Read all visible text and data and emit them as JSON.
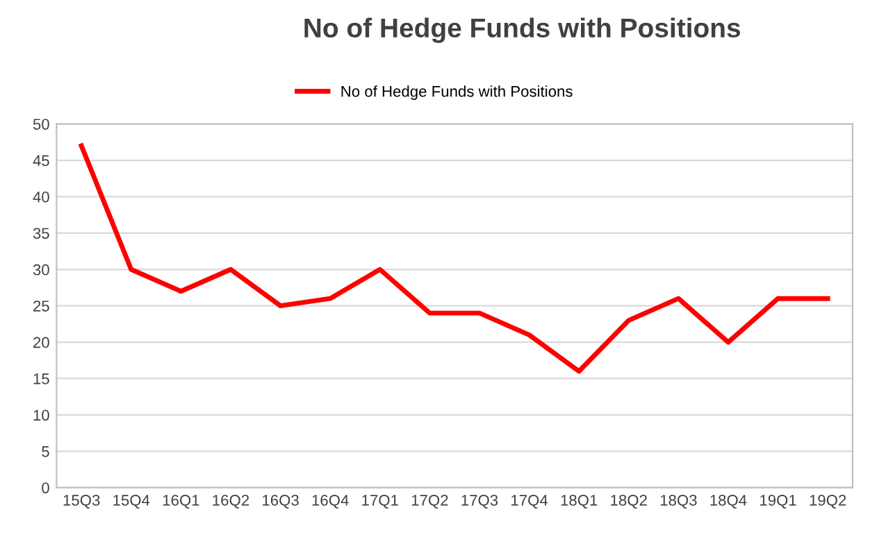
{
  "chart_data": {
    "type": "line",
    "title": "No of Hedge Funds with Positions",
    "categories": [
      "15Q3",
      "15Q4",
      "16Q1",
      "16Q2",
      "16Q3",
      "16Q4",
      "17Q1",
      "17Q2",
      "17Q3",
      "17Q4",
      "18Q1",
      "18Q2",
      "18Q3",
      "18Q4",
      "19Q1",
      "19Q2"
    ],
    "series": [
      {
        "name": "No of Hedge Funds with Positions",
        "color": "#ff0000",
        "values": [
          47,
          30,
          27,
          30,
          25,
          26,
          30,
          24,
          24,
          21,
          16,
          23,
          26,
          20,
          26,
          26
        ]
      }
    ],
    "ylim": [
      0,
      50
    ],
    "yticks": [
      0,
      5,
      10,
      15,
      20,
      25,
      30,
      35,
      40,
      45,
      50
    ],
    "grid": "y",
    "legend": "top",
    "marker": "none",
    "line_style": "solid"
  }
}
